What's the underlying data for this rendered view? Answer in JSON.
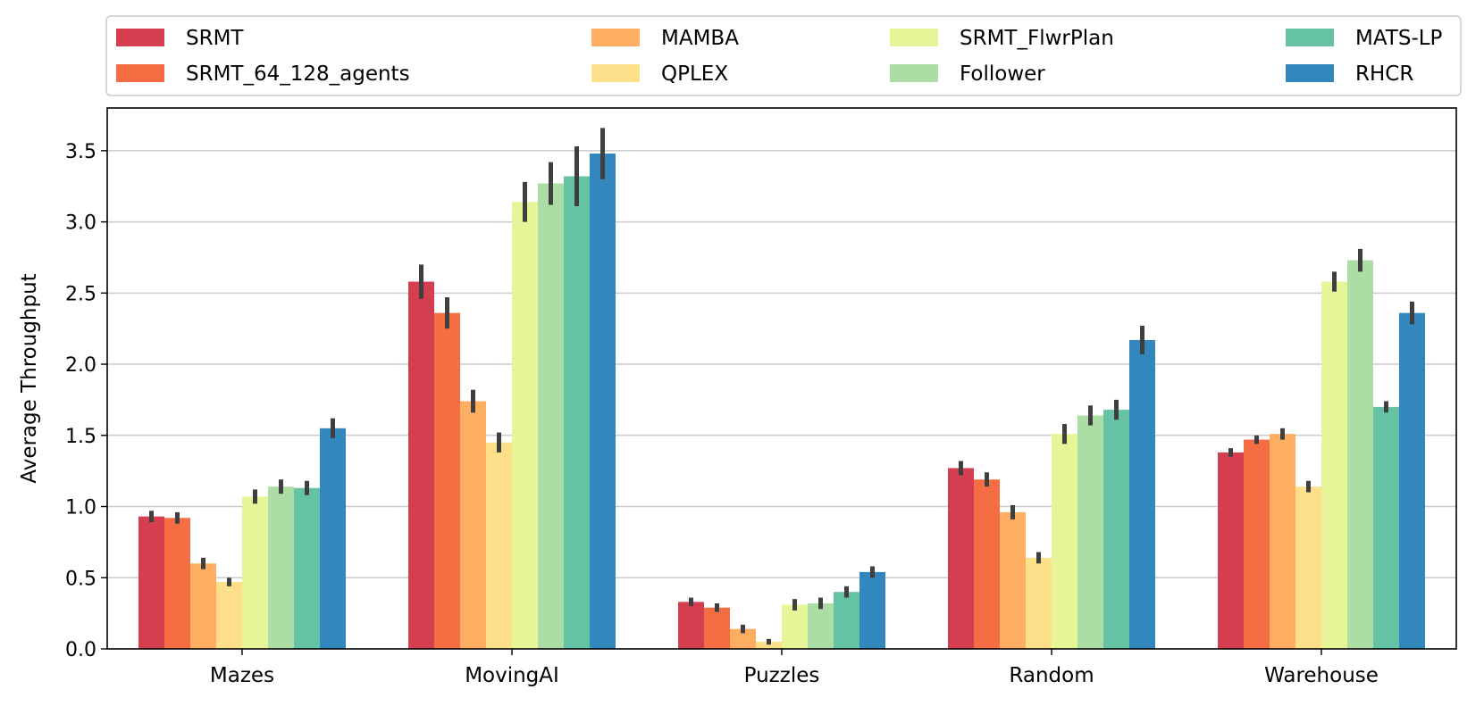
{
  "chart_data": {
    "type": "bar",
    "title": "",
    "xlabel": "",
    "ylabel": "Average Throughput",
    "ylim": [
      0,
      3.8
    ],
    "yticks": [
      "0.0",
      "0.5",
      "1.0",
      "1.5",
      "2.0",
      "2.5",
      "3.0",
      "3.5"
    ],
    "grid": "horizontal",
    "legend_position": "top",
    "categories": [
      "Mazes",
      "MovingAI",
      "Puzzles",
      "Random",
      "Warehouse"
    ],
    "series": [
      {
        "name": "SRMT",
        "color": "#d53e4f",
        "values": [
          0.93,
          2.58,
          0.33,
          1.27,
          1.38
        ],
        "err": [
          0.04,
          0.12,
          0.03,
          0.05,
          0.03
        ]
      },
      {
        "name": "SRMT_64_128_agents",
        "color": "#f46d43",
        "values": [
          0.92,
          2.36,
          0.29,
          1.19,
          1.47
        ],
        "err": [
          0.04,
          0.11,
          0.03,
          0.05,
          0.03
        ]
      },
      {
        "name": "MAMBA",
        "color": "#fdae61",
        "values": [
          0.6,
          1.74,
          0.14,
          0.96,
          1.51
        ],
        "err": [
          0.04,
          0.08,
          0.03,
          0.05,
          0.04
        ]
      },
      {
        "name": "QPLEX",
        "color": "#fee08b",
        "values": [
          0.47,
          1.45,
          0.05,
          0.64,
          1.14
        ],
        "err": [
          0.03,
          0.07,
          0.02,
          0.04,
          0.04
        ]
      },
      {
        "name": "SRMT_FlwrPlan",
        "color": "#e6f598",
        "values": [
          1.07,
          3.14,
          0.31,
          1.51,
          2.58
        ],
        "err": [
          0.05,
          0.14,
          0.04,
          0.07,
          0.07
        ]
      },
      {
        "name": "Follower",
        "color": "#abdda4",
        "values": [
          1.14,
          3.27,
          0.32,
          1.64,
          2.73
        ],
        "err": [
          0.05,
          0.15,
          0.04,
          0.07,
          0.08
        ]
      },
      {
        "name": "MATS-LP",
        "color": "#66c2a5",
        "values": [
          1.13,
          3.32,
          0.4,
          1.68,
          1.7
        ],
        "err": [
          0.05,
          0.21,
          0.04,
          0.07,
          0.04
        ]
      },
      {
        "name": "RHCR",
        "color": "#3288bd",
        "values": [
          1.55,
          3.48,
          0.54,
          2.17,
          2.36
        ],
        "err": [
          0.07,
          0.18,
          0.04,
          0.1,
          0.08
        ]
      }
    ]
  }
}
